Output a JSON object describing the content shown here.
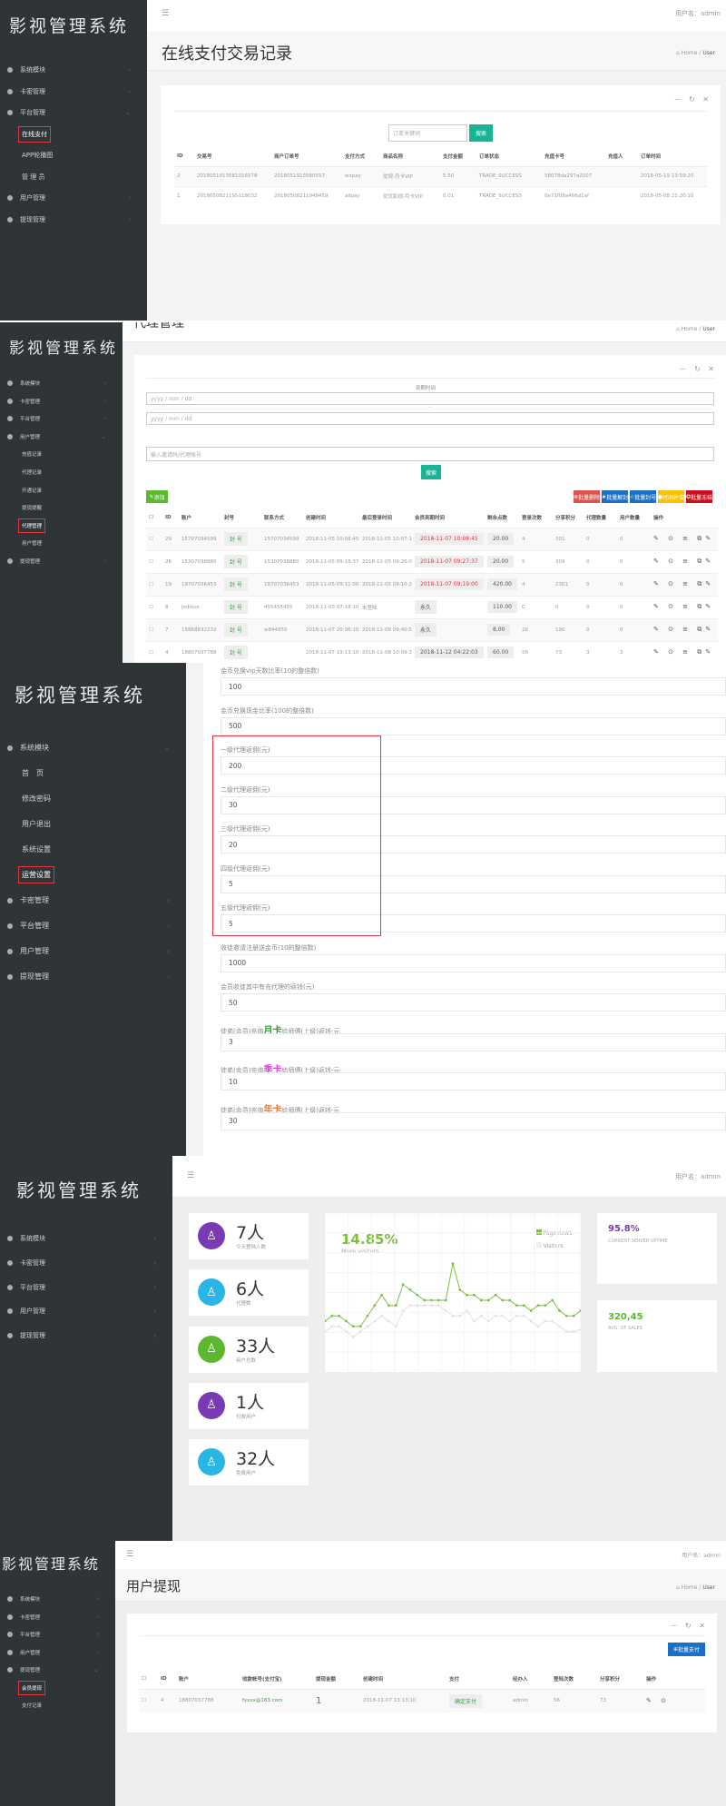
{
  "app": {
    "title": "影视管理系统",
    "user_label": "用户名：admin",
    "home": "Home",
    "user_crumb": "User",
    "menu_icon": "hamburger-icon",
    "tools": "－ ↻ ✕"
  },
  "colors": {
    "sidebar": "#2f3437",
    "primary": "#1ab394",
    "red": "#ed5565",
    "blue": "#1c84c6",
    "yellow": "#f8ac59",
    "highlight": "#e0383e",
    "green": "#7cbf3f",
    "purple": "#7a3ab5",
    "cyan": "#29b6e6"
  },
  "panel1": {
    "menu": [
      {
        "label": "系统模块",
        "chev": "‹"
      },
      {
        "label": "卡密管理",
        "chev": "‹"
      },
      {
        "label": "平台管理",
        "chev": "⌄"
      },
      {
        "label": "在线支付",
        "sub": true,
        "active": true
      },
      {
        "label": "APP轮播图",
        "sub": true
      },
      {
        "label": "管 理 员",
        "sub": true
      },
      {
        "label": "用户管理",
        "chev": "‹"
      },
      {
        "label": "提现管理",
        "chev": "‹"
      }
    ],
    "title": "在线支付交易记录",
    "search_placeholder": "订单关键词",
    "search_button": "搜索",
    "columns": [
      "ID",
      "交易号",
      "商户订单号",
      "支付方式",
      "商品名称",
      "支付金额",
      "订单状态",
      "充值卡号",
      "充值人",
      "订单时间"
    ],
    "rows": [
      [
        "2",
        "2018051913581016578",
        "2018051913580557",
        "wxpay",
        "优视-月卡VIP",
        "5.50",
        "TRADE_SUCCESS",
        "58078da297a2007",
        "",
        "2018-05-19 13:59:20"
      ],
      [
        "1",
        "2018050821195118032",
        "20180508211948459",
        "alipay",
        "优优影视-月卡VIP",
        "0.01",
        "TRADE_SUCCESS",
        "0e71f08a466d1af",
        "",
        "2018-05-08 21:20:10"
      ]
    ]
  },
  "panel2": {
    "title": "代理管理",
    "menu": [
      {
        "label": "系统模块",
        "chev": "‹"
      },
      {
        "label": "卡密管理",
        "chev": "‹"
      },
      {
        "label": "平台管理",
        "chev": "‹"
      },
      {
        "label": "用户管理",
        "chev": "⌄"
      },
      {
        "label": "充值记录",
        "sub": true
      },
      {
        "label": "代理记录",
        "sub": true
      },
      {
        "label": "开通记录",
        "sub": true
      },
      {
        "label": "提现提醒",
        "sub": true
      },
      {
        "label": "代理管理",
        "sub": true,
        "active": true
      },
      {
        "label": "用户管理",
        "sub": true
      },
      {
        "label": "提现管理",
        "chev": "‹"
      }
    ],
    "expire_label": "到期时间",
    "date_placeholder": "yyyy / mm / dd",
    "sep": "-",
    "keyword_placeholder": "输入邀请码/代理账号",
    "search_button": "搜索",
    "add_button": "添加",
    "actions": [
      {
        "label": "批量删除",
        "icon": "⊗",
        "color": "#d9534f"
      },
      {
        "label": "批量解封",
        "icon": "★",
        "color": "#1c6fc6"
      },
      {
        "label": "批量封号",
        "icon": "☆",
        "color": "#1c6fc6"
      },
      {
        "label": "时间补偿",
        "icon": "●",
        "color": "#f8c200"
      },
      {
        "label": "批量冻结",
        "icon": "✪",
        "color": "#cc0f1f"
      }
    ],
    "columns": [
      "",
      "ID",
      "账户",
      "封号",
      "联系方式",
      "创建时间",
      "最后登录时间",
      "会员到期时间",
      "剩余点数",
      "登录次数",
      "分享积分",
      "代理数量",
      "用户数量",
      "操作"
    ],
    "ban_label": "封 号",
    "ops": "✎ ⊙ ≡ ⧉✎",
    "rows": [
      [
        "29",
        "15707034599",
        "15707034599",
        "2018-11-05 10:08:45",
        "2018-11-05 10:07:17",
        "2018-11-07 10:08:45",
        "20.00",
        "4",
        "301",
        "0",
        "0",
        true
      ],
      [
        "26",
        "15307038880",
        "15307038880",
        "2018-11-05 09:18:37",
        "2018-11-05 09:26:09",
        "2018-11-07 09:27:37",
        "20.00",
        "5",
        "309",
        "0",
        "0",
        true
      ],
      [
        "19",
        "18707036453",
        "18707036453",
        "2018-11-05 09:11:00",
        "2018-11-05 09:10:22",
        "2018-11-07 09:19:00",
        "420.00",
        "4",
        "2301",
        "0",
        "0",
        true
      ],
      [
        "8",
        "jodious",
        "455455455",
        "2018-11-03 07:18:10",
        "未登陆",
        "永久",
        "110.00",
        "0",
        "0",
        "0",
        "0",
        false
      ],
      [
        "7",
        "15868832232",
        "w844955",
        "2018-11-07 20:06:10",
        "2018-11-08 09:40:52",
        "永久",
        "8.00",
        "26",
        "190",
        "0",
        "0",
        false
      ],
      [
        "4",
        "18807037788",
        "",
        "2018-11-07 13:13:10",
        "2018-11-08 10:09:30",
        "2018-11-12 04:22:03",
        "60.00",
        "56",
        "73",
        "3",
        "3",
        false
      ]
    ]
  },
  "panel3": {
    "menu": [
      {
        "label": "系统模块",
        "chev": "⌄"
      },
      {
        "label": "首　页",
        "sub": true
      },
      {
        "label": "修改密码",
        "sub": true
      },
      {
        "label": "用户退出",
        "sub": true
      },
      {
        "label": "系统设置",
        "sub": true
      },
      {
        "label": "运营设置",
        "sub": true,
        "active": true
      },
      {
        "label": "卡密管理",
        "chev": "›"
      },
      {
        "label": "平台管理",
        "chev": "›"
      },
      {
        "label": "用户管理",
        "chev": "›"
      },
      {
        "label": "提现管理",
        "chev": "›"
      }
    ],
    "fields": [
      {
        "pre": "金币兑换vip天数比率(10的整倍数)",
        "value": "100"
      },
      {
        "pre": "金币兑换现金比率(100的整倍数)",
        "value": "500"
      },
      {
        "pre": "一级代理返佣(元)",
        "value": "200"
      },
      {
        "pre": "二级代理返佣(元)",
        "value": "30"
      },
      {
        "pre": "三级代理返佣(元)",
        "value": "20"
      },
      {
        "pre": "四级代理返佣(元)",
        "value": "5"
      },
      {
        "pre": "五级代理返佣(元)",
        "value": "5"
      },
      {
        "pre": "收徒邀请注册送金币(10的整倍数)",
        "value": "1000"
      },
      {
        "pre": "会员收徒其中有充代理的返钱(元)",
        "value": "50"
      },
      {
        "pre": "徒弟(会员)充值",
        "em": "月卡",
        "em_color": "#2e9a2e",
        "post": "给师傅(上级)返钱-元",
        "value": "3"
      },
      {
        "pre": "徒弟(会员)充值",
        "em": "季卡",
        "em_color": "#e040e0",
        "post": "给师傅(上级)返钱-元",
        "value": "10"
      },
      {
        "pre": "徒弟(会员)充值",
        "em": "年卡",
        "em_color": "#f07030",
        "post": "给师傅(上级)返钱-元",
        "value": "30"
      }
    ]
  },
  "panel4": {
    "menu": [
      {
        "label": "系统模块",
        "chev": "›"
      },
      {
        "label": "卡密管理",
        "chev": "›"
      },
      {
        "label": "平台管理",
        "chev": "›"
      },
      {
        "label": "用户管理",
        "chev": "›"
      },
      {
        "label": "提现管理",
        "chev": "›"
      }
    ],
    "stats": [
      {
        "value": "7人",
        "label": "今天登陆人数",
        "color": "#7a3ab5"
      },
      {
        "value": "6人",
        "label": "代理数",
        "color": "#29b6e6"
      },
      {
        "value": "33人",
        "label": "用户总数",
        "color": "#5cb82e"
      },
      {
        "value": "1人",
        "label": "付费用户",
        "color": "#7a3ab5"
      },
      {
        "value": "32人",
        "label": "免费用户",
        "color": "#29b6e6"
      }
    ],
    "chart_title": "14.85%",
    "chart_subtitle": "More visitors",
    "uptime": {
      "value": "95.8%",
      "label": "CURRENT SERVER UPTIME"
    },
    "sales": {
      "value": "320,45",
      "label": "AVG. OF SALES"
    }
  },
  "chart_data": {
    "type": "line",
    "legend_position": "top-right",
    "grid": true,
    "series": [
      {
        "name": "Pageviews",
        "color": "#7cbf3f",
        "values": [
          40,
          45,
          45,
          40,
          35,
          35,
          45,
          55,
          65,
          55,
          55,
          75,
          70,
          65,
          60,
          60,
          60,
          60,
          95,
          70,
          65,
          65,
          60,
          60,
          65,
          60,
          60,
          55,
          55,
          50,
          55,
          55,
          60,
          50,
          45,
          45,
          50
        ]
      },
      {
        "name": "Visitors",
        "color": "#e2e2e2",
        "values": [
          30,
          35,
          35,
          30,
          25,
          30,
          35,
          40,
          45,
          40,
          35,
          50,
          55,
          55,
          55,
          55,
          55,
          50,
          45,
          45,
          50,
          40,
          45,
          40,
          45,
          45,
          40,
          45,
          45,
          40,
          35,
          40,
          40,
          35,
          30,
          30,
          32
        ]
      }
    ]
  },
  "panel5": {
    "title": "用户提现",
    "menu": [
      {
        "label": "系统模块",
        "chev": "‹"
      },
      {
        "label": "卡密管理",
        "chev": "‹"
      },
      {
        "label": "平台管理",
        "chev": "‹"
      },
      {
        "label": "用户管理",
        "chev": "‹"
      },
      {
        "label": "提现管理",
        "chev": "⌄"
      },
      {
        "label": "会员提现",
        "sub": true,
        "active": true
      },
      {
        "label": "支付记录",
        "sub": true
      }
    ],
    "pay_button": "批量支付",
    "columns": [
      "",
      "ID",
      "账户",
      "收款帐号(支付宝)",
      "提现金额",
      "创建时间",
      "支付",
      "经办人",
      "登陆次数",
      "分享积分",
      "操作"
    ],
    "rows": [
      [
        "4",
        "18807037788",
        "fyxxx@163.com",
        "1",
        "2018-11-07 13:13:10",
        "确定支付",
        "admin",
        "56",
        "73",
        "✎ ⊙"
      ]
    ]
  }
}
